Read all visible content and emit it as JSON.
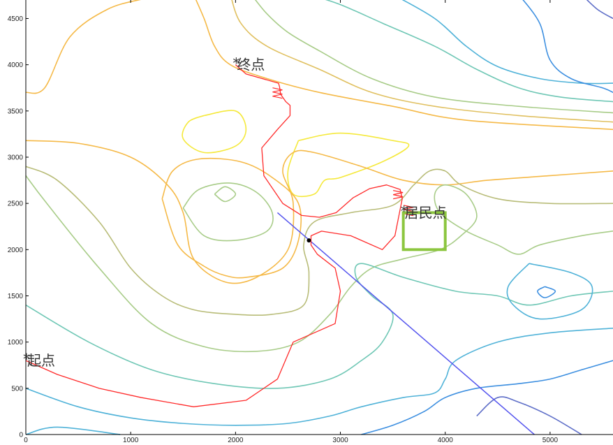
{
  "chart_data": {
    "type": "contour",
    "title": "",
    "xlabel": "",
    "ylabel": "",
    "xlim": [
      0,
      5600
    ],
    "ylim": [
      0,
      4700
    ],
    "x_ticks": [
      "0",
      "1000",
      "2000",
      "3000",
      "4000",
      "5000"
    ],
    "y_ticks": [
      "0",
      "500",
      "1000",
      "1500",
      "2000",
      "2500",
      "3000",
      "3500",
      "4000",
      "4500"
    ],
    "grid": false,
    "annotations": [
      {
        "text": "起点",
        "x": 0,
        "y": 800
      },
      {
        "text": "终点",
        "x": 2000,
        "y": 4000
      },
      {
        "text": "居民点",
        "x": 3600,
        "y": 2400
      }
    ],
    "residential_area": {
      "x": [
        3600,
        4000
      ],
      "y": [
        2000,
        2400
      ],
      "color": "#8cc63f"
    },
    "path": {
      "color": "#ff2a2a",
      "x": [
        0,
        300,
        700,
        1100,
        1600,
        2100,
        2400,
        2550,
        2950,
        3000,
        2950,
        2780,
        2720,
        2720,
        2820,
        3100,
        3400,
        3520,
        3590,
        3570,
        3440,
        3280,
        3120,
        2960,
        2800,
        2630,
        2450,
        2270,
        2250,
        2400,
        2520,
        2520,
        2480,
        2430,
        2420,
        2410,
        2100,
        2000
      ],
      "y": [
        800,
        650,
        500,
        400,
        300,
        370,
        600,
        1000,
        1200,
        1550,
        1800,
        1950,
        2050,
        2150,
        2200,
        2150,
        2000,
        2150,
        2550,
        2650,
        2700,
        2660,
        2560,
        2400,
        2350,
        2370,
        2500,
        2800,
        3100,
        3300,
        3450,
        3560,
        3600,
        3680,
        3760,
        3800,
        3900,
        4000
      ]
    },
    "line": {
      "color": "#5555ee",
      "x1": 2400,
      "y1": 2400,
      "x2": 4850,
      "y2": 0
    },
    "waypoint": {
      "x": 2700,
      "y": 2100
    },
    "contours": [
      {
        "color": "#f5b947",
        "x": [
          0,
          180,
          420,
          780,
          1150,
          1300
        ],
        "y": [
          3700,
          3750,
          4300,
          4600,
          4720,
          4760
        ]
      },
      {
        "color": "#f5b947",
        "x": [
          1600,
          1700,
          1800,
          1950,
          2300,
          2800,
          3500,
          4200,
          5600
        ],
        "y": [
          4760,
          4500,
          4200,
          4000,
          3850,
          3700,
          3550,
          3400,
          3300
        ]
      },
      {
        "color": "#e0c060",
        "x": [
          1950,
          2050,
          2300,
          2800,
          3300,
          3900,
          4700,
          5600
        ],
        "y": [
          4760,
          4450,
          4200,
          3950,
          3700,
          3550,
          3450,
          3380
        ]
      },
      {
        "color": "#a8cc88",
        "x": [
          2150,
          2300,
          2500,
          2800,
          3300,
          3900,
          4700,
          5600
        ],
        "y": [
          4760,
          4550,
          4350,
          4150,
          3850,
          3650,
          3550,
          3480
        ]
      },
      {
        "color": "#6fc7b5",
        "x": [
          2700,
          3000,
          3400,
          3900,
          4300,
          4700,
          5100,
          5600
        ],
        "y": [
          4760,
          4650,
          4450,
          4200,
          3950,
          3750,
          3650,
          3600
        ]
      },
      {
        "color": "#4fb2d8",
        "x": [
          3500,
          3900,
          4200,
          4500,
          4900,
          5300,
          5600
        ],
        "y": [
          4760,
          4500,
          4200,
          3980,
          3850,
          3800,
          3800
        ]
      },
      {
        "color": "#3d8fe0",
        "x": [
          4700,
          4900,
          5000,
          5200,
          5500,
          5600
        ],
        "y": [
          4760,
          4450,
          4050,
          3850,
          3750,
          3700
        ]
      },
      {
        "color": "#5f6fc8",
        "x": [
          5300,
          5450,
          5600
        ],
        "y": [
          4760,
          4600,
          4500
        ]
      },
      {
        "color": "#f5e93c",
        "x": [
          1700,
          2000,
          2100,
          2000,
          1700,
          1500,
          1550,
          1700
        ],
        "y": [
          3450,
          3500,
          3300,
          3120,
          3050,
          3200,
          3380,
          3450
        ]
      },
      {
        "color": "#f5e93c",
        "x": [
          2600,
          3000,
          3500,
          3650,
          3400,
          3000,
          2850,
          2750,
          2550,
          2500,
          2600
        ],
        "y": [
          3180,
          3260,
          3180,
          3120,
          2950,
          2780,
          2750,
          2600,
          2600,
          2850,
          3180
        ]
      },
      {
        "color": "#f5b947",
        "x": [
          0,
          500,
          1000,
          1350,
          1500,
          1600,
          1900,
          2200,
          2500,
          2550,
          2450,
          2550,
          2750,
          3200,
          3600,
          4000,
          4400,
          5000,
          5600
        ],
        "y": [
          3180,
          3150,
          3000,
          2700,
          2400,
          1900,
          1650,
          1700,
          2000,
          2500,
          2850,
          3050,
          3050,
          2900,
          2750,
          2700,
          2750,
          2800,
          2850
        ]
      },
      {
        "color": "#f5b947",
        "x": [
          1300,
          1400,
          1650,
          2050,
          2350,
          2600,
          2600,
          2450,
          2100,
          1900,
          1700,
          1450,
          1300
        ],
        "y": [
          2550,
          2850,
          2980,
          2950,
          2780,
          2500,
          2100,
          1800,
          1700,
          1720,
          1820,
          2050,
          2550
        ]
      },
      {
        "color": "#b8bc78",
        "x": [
          0,
          300,
          700,
          1000,
          1300,
          1600,
          2000,
          2350,
          2650,
          2700,
          2650,
          2750,
          3100,
          3500,
          3700,
          3850,
          4000,
          4150,
          4500,
          5000,
          5600
        ],
        "y": [
          2900,
          2750,
          2300,
          1800,
          1500,
          1350,
          1300,
          1300,
          1400,
          1750,
          2050,
          2300,
          2400,
          2480,
          2700,
          2850,
          2850,
          2700,
          2550,
          2500,
          2500
        ]
      },
      {
        "color": "#a8cc88",
        "x": [
          1500,
          1650,
          1950,
          2200,
          2350,
          2300,
          2000,
          1700,
          1500
        ],
        "y": [
          2450,
          2650,
          2720,
          2620,
          2400,
          2200,
          2100,
          2150,
          2450
        ]
      },
      {
        "color": "#a8cc88",
        "x": [
          1800,
          1900,
          2000,
          1900,
          1800
        ],
        "y": [
          2600,
          2680,
          2600,
          2520,
          2600
        ]
      },
      {
        "color": "#a8cc88",
        "x": [
          0,
          200,
          700,
          1200,
          1700,
          2200,
          2600,
          2900,
          3100,
          3300,
          3600,
          3950,
          4150,
          4300,
          4200,
          4000,
          3900,
          3950,
          4200,
          4500,
          4700,
          4900,
          5300,
          5600
        ],
        "y": [
          2800,
          2500,
          1800,
          1200,
          950,
          900,
          1000,
          1300,
          1600,
          1800,
          1900,
          2000,
          2150,
          2350,
          2600,
          2700,
          2600,
          2400,
          2200,
          2050,
          1950,
          2050,
          2150,
          2200
        ]
      },
      {
        "color": "#6fc7b5",
        "x": [
          0,
          600,
          1200,
          1800,
          2400,
          2900,
          3200,
          3400,
          3500,
          3300,
          3150,
          3200,
          3600,
          4100,
          4500,
          4800,
          5200,
          5600
        ],
        "y": [
          1400,
          1000,
          700,
          550,
          500,
          600,
          800,
          1000,
          1300,
          1500,
          1700,
          1850,
          1700,
          1550,
          1500,
          1400,
          1500,
          1550
        ]
      },
      {
        "color": "#4fb2d8",
        "x": [
          0,
          500,
          1000,
          1500,
          2000,
          2500,
          2900,
          3200,
          3600,
          3900,
          4000,
          4100,
          4500,
          5000,
          5600
        ],
        "y": [
          500,
          300,
          180,
          120,
          100,
          120,
          200,
          300,
          400,
          450,
          600,
          800,
          1000,
          1100,
          1150
        ]
      },
      {
        "color": "#4fb2d8",
        "x": [
          4800,
          5200,
          5400,
          5300,
          4900,
          4650,
          4600,
          4800
        ],
        "y": [
          1850,
          1750,
          1600,
          1350,
          1250,
          1400,
          1600,
          1850
        ]
      },
      {
        "color": "#3d8fe0",
        "x": [
          4950,
          5050,
          4950,
          4880,
          4950
        ],
        "y": [
          1600,
          1550,
          1480,
          1550,
          1600
        ]
      },
      {
        "color": "#3d8fe0",
        "x": [
          3200,
          3500,
          3800,
          4000,
          4300,
          4700,
          5000,
          5300,
          5600
        ],
        "y": [
          0,
          100,
          250,
          400,
          500,
          550,
          600,
          700,
          800
        ]
      },
      {
        "color": "#5f6fc8",
        "x": [
          4300,
          4500,
          4700,
          5000,
          5300
        ],
        "y": [
          200,
          400,
          350,
          200,
          0
        ]
      },
      {
        "color": "#4fb2d8",
        "x": [
          0,
          300,
          900
        ],
        "y": [
          0,
          80,
          0
        ]
      }
    ]
  }
}
